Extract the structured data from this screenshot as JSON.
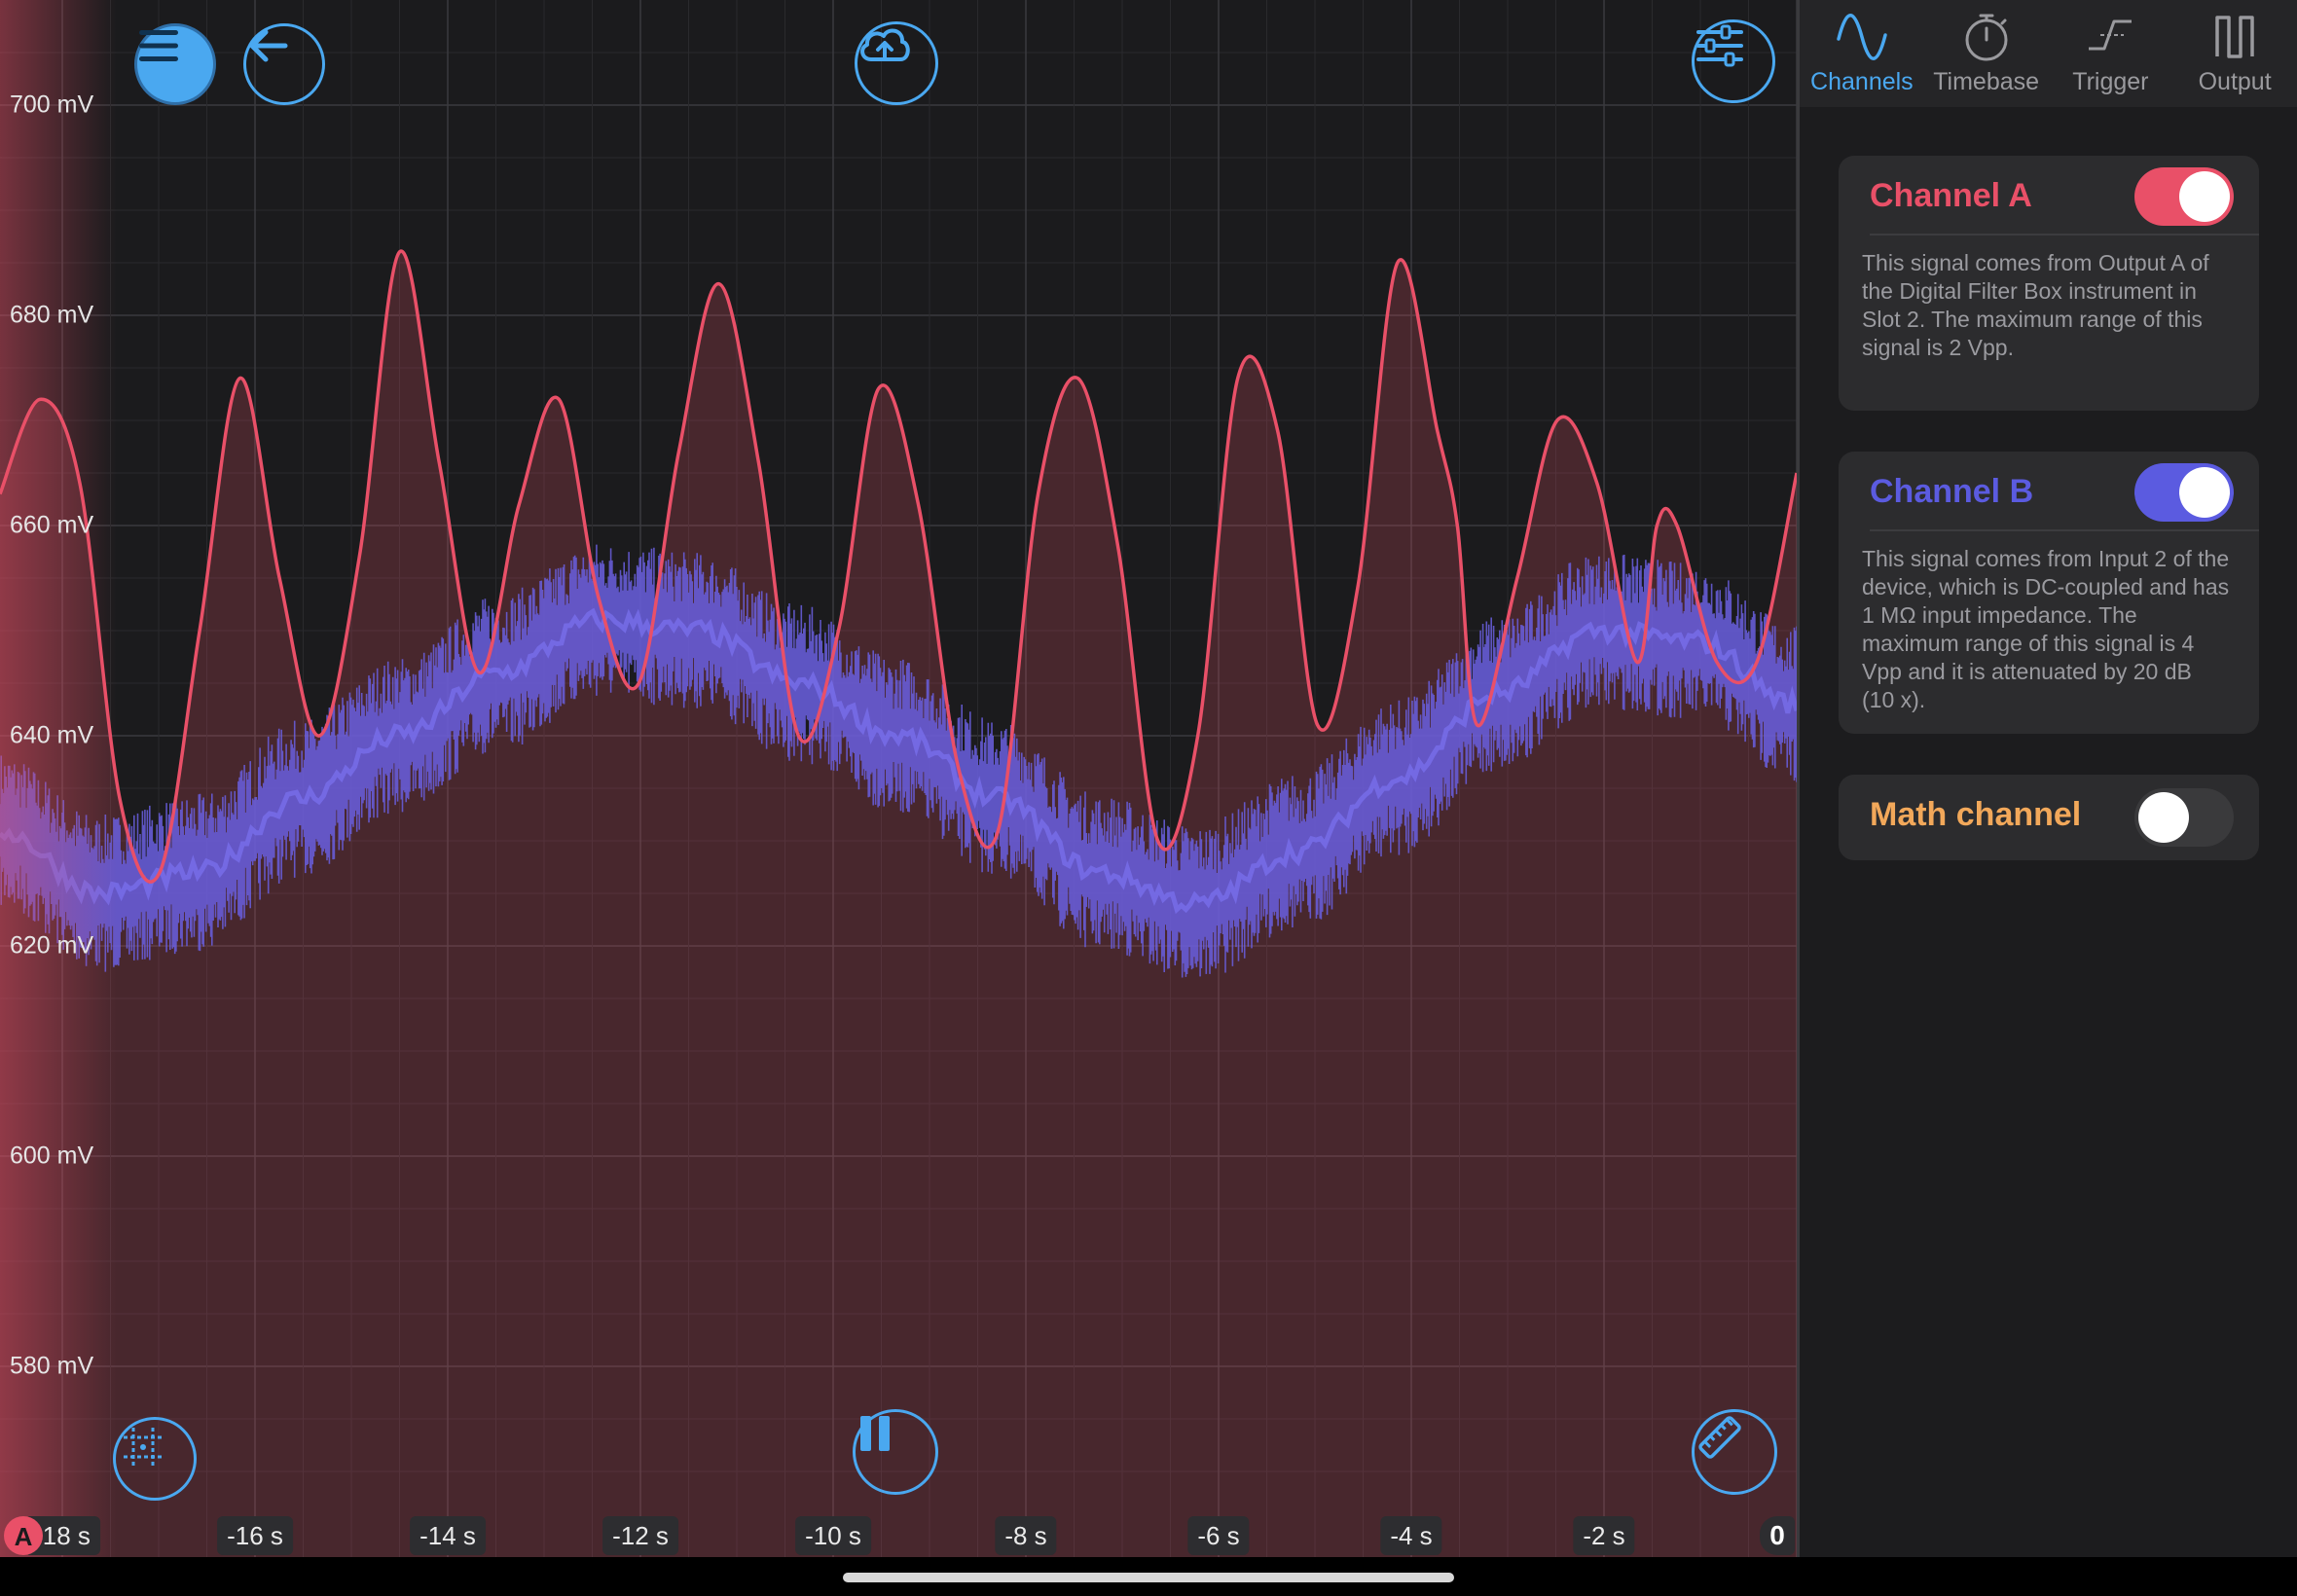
{
  "toolbar": {
    "menu_icon": "hamburger-icon",
    "back_icon": "arrow-left-icon",
    "upload_icon": "cloud-upload-icon",
    "settings_icon": "sliders-icon",
    "grid_icon": "grid-icon",
    "pause_icon": "pause-icon",
    "measure_icon": "ruler-icon"
  },
  "markers": {
    "channel_a": "A",
    "zero": "0"
  },
  "chart_data": {
    "type": "line",
    "x_unit": "s",
    "y_unit": "mV",
    "xlim": [
      -18,
      0
    ],
    "ylim": [
      570,
      705
    ],
    "y_ticks": [
      {
        "value": 700,
        "label": "700 mV"
      },
      {
        "value": 680,
        "label": "680 mV"
      },
      {
        "value": 660,
        "label": "660 mV"
      },
      {
        "value": 640,
        "label": "640 mV"
      },
      {
        "value": 620,
        "label": "620 mV"
      },
      {
        "value": 600,
        "label": "600 mV"
      },
      {
        "value": 580,
        "label": "580 mV"
      }
    ],
    "x_ticks": [
      {
        "value": -18,
        "label": "-18 s"
      },
      {
        "value": -16,
        "label": "-16 s"
      },
      {
        "value": -14,
        "label": "-14 s"
      },
      {
        "value": -12,
        "label": "-12 s"
      },
      {
        "value": -10,
        "label": "-10 s"
      },
      {
        "value": -8,
        "label": "-8 s"
      },
      {
        "value": -6,
        "label": "-6 s"
      },
      {
        "value": -4,
        "label": "-4 s"
      },
      {
        "value": -2,
        "label": "-2 s"
      }
    ],
    "grid": true,
    "series": [
      {
        "name": "Channel A",
        "color": "#e95068",
        "fill": true,
        "x": [
          -18.0,
          -17.6,
          -17.2,
          -16.8,
          -16.4,
          -16.0,
          -15.6,
          -15.2,
          -14.8,
          -14.4,
          -14.0,
          -13.6,
          -13.2,
          -12.8,
          -12.4,
          -12.0,
          -11.6,
          -11.2,
          -10.8,
          -10.4,
          -10.0,
          -9.6,
          -9.2,
          -8.8,
          -8.4,
          -8.0,
          -7.6,
          -7.2,
          -6.8,
          -6.4,
          -6.0,
          -5.6,
          -5.2,
          -4.8,
          -4.4,
          -4.0,
          -3.6,
          -3.4,
          -3.2,
          -2.8,
          -2.4,
          -2.0,
          -1.6,
          -1.4,
          -1.2,
          -0.8,
          -0.4,
          0.0
        ],
        "y": [
          663,
          672,
          664,
          634,
          627,
          650,
          674,
          655,
          640,
          657,
          686,
          666,
          646,
          662,
          672,
          653,
          645,
          667,
          683,
          666,
          640,
          650,
          673,
          662,
          637,
          631,
          663,
          674,
          658,
          630,
          640,
          674,
          669,
          641,
          654,
          685,
          669,
          660,
          641,
          655,
          670,
          664,
          647,
          660,
          660,
          647,
          647,
          665
        ]
      },
      {
        "name": "Channel B",
        "color": "#6a5fe0",
        "x": [
          -18.0,
          -17.0,
          -16.0,
          -15.0,
          -14.0,
          -13.0,
          -12.0,
          -11.0,
          -10.0,
          -9.0,
          -8.0,
          -7.0,
          -6.0,
          -5.0,
          -4.0,
          -3.0,
          -2.0,
          -1.0,
          0.0
        ],
        "y": [
          631,
          625,
          627,
          634,
          640,
          646,
          651,
          650,
          645,
          640,
          634,
          627,
          624,
          629,
          636,
          644,
          650,
          649,
          643
        ],
        "noise_mv": 5
      }
    ]
  },
  "panel": {
    "tabs": [
      {
        "label": "Channels",
        "icon": "sine-wave-icon",
        "active": true
      },
      {
        "label": "Timebase",
        "icon": "stopwatch-icon",
        "active": false
      },
      {
        "label": "Trigger",
        "icon": "trigger-edge-icon",
        "active": false
      },
      {
        "label": "Output",
        "icon": "square-wave-icon",
        "active": false
      }
    ],
    "channel_a": {
      "title": "Channel A",
      "color": "#e95068",
      "enabled": true,
      "description": "This signal comes from Output A of the Digital Filter Box instrument in Slot 2. The maximum range of this signal is 2 Vpp."
    },
    "channel_b": {
      "title": "Channel B",
      "color": "#5b5be0",
      "enabled": true,
      "description": "This signal comes from Input 2 of the device, which is DC-coupled and has 1 MΩ input impedance. The maximum range of this signal is 4 Vpp and it is attenuated by 20 dB (10 x)."
    },
    "math_channel": {
      "title": "Math channel",
      "color": "#f2a85a",
      "enabled": false
    }
  }
}
